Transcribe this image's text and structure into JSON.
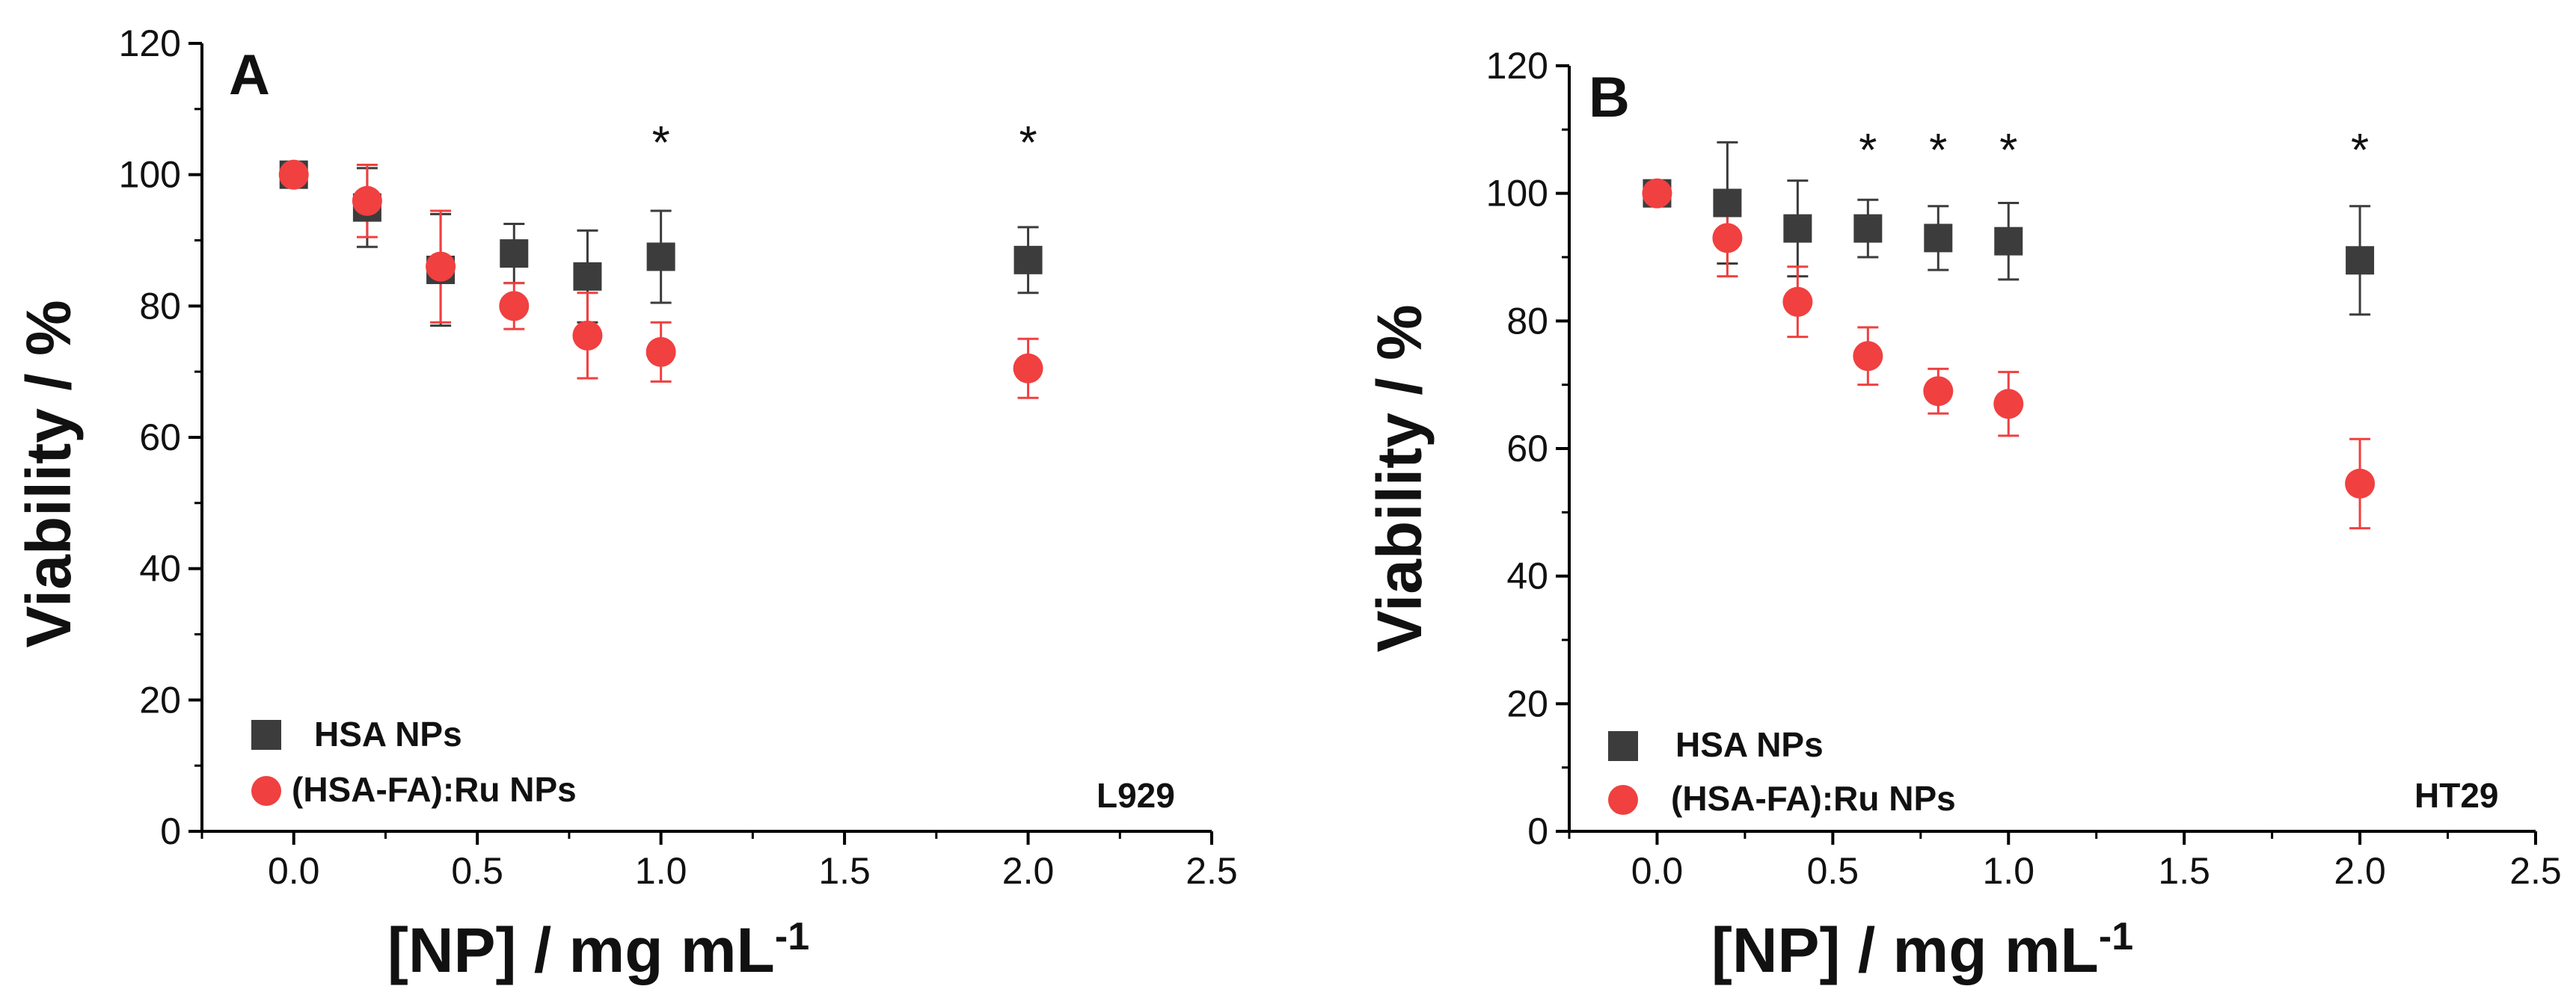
{
  "colors": {
    "hsa": "#3c3c3c",
    "ru": "#f04040",
    "axis": "#000000"
  },
  "chart_data": [
    {
      "type": "scatter",
      "panel": "A",
      "cell_line": "L929",
      "xlabel": "[NP] / mg mL",
      "xlabel_sup": "-1",
      "ylabel": "Viability / %",
      "xlim": [
        -0.25,
        2.5
      ],
      "ylim": [
        0,
        120
      ],
      "xticks": [
        0.0,
        0.5,
        1.0,
        1.5,
        2.0,
        2.5
      ],
      "xtick_labels": [
        "0.0",
        "0.5",
        "1.0",
        "1.5",
        "2.0",
        "2.5"
      ],
      "yticks": [
        0,
        20,
        40,
        60,
        80,
        100,
        120
      ],
      "ytick_labels": [
        "0",
        "20",
        "40",
        "60",
        "80",
        "100",
        "120"
      ],
      "legend_position": "bottom-left",
      "series": [
        {
          "name": "HSA NPs",
          "marker": "square",
          "color": "#3c3c3c",
          "x": [
            0.0,
            0.2,
            0.4,
            0.6,
            0.8,
            1.0,
            2.0
          ],
          "y": [
            100,
            95,
            85.5,
            88,
            84.5,
            87.5,
            87
          ],
          "err": [
            0,
            6,
            8.5,
            4.5,
            7,
            7,
            5
          ]
        },
        {
          "name": "(HSA-FA):Ru NPs",
          "marker": "circle",
          "color": "#f04040",
          "x": [
            0.0,
            0.2,
            0.4,
            0.6,
            0.8,
            1.0,
            2.0
          ],
          "y": [
            100,
            96,
            86,
            80,
            75.5,
            73,
            70.5
          ],
          "err": [
            0,
            5.5,
            8.5,
            3.5,
            6.5,
            4.5,
            4.5
          ]
        }
      ],
      "significance": [
        {
          "x": 1.0,
          "y": 107,
          "label": "*"
        },
        {
          "x": 2.0,
          "y": 107,
          "label": "*"
        }
      ]
    },
    {
      "type": "scatter",
      "panel": "B",
      "cell_line": "HT29",
      "xlabel": "[NP] / mg mL",
      "xlabel_sup": "-1",
      "ylabel": "Viability / %",
      "xlim": [
        -0.25,
        2.5
      ],
      "ylim": [
        0,
        120
      ],
      "xticks": [
        0.0,
        0.5,
        1.0,
        1.5,
        2.0,
        2.5
      ],
      "xtick_labels": [
        "0.0",
        "0.5",
        "1.0",
        "1.5",
        "2.0",
        "2.5"
      ],
      "yticks": [
        0,
        20,
        40,
        60,
        80,
        100,
        120
      ],
      "ytick_labels": [
        "0",
        "20",
        "40",
        "60",
        "80",
        "100",
        "120"
      ],
      "legend_position": "bottom-left",
      "series": [
        {
          "name": "HSA NPs",
          "marker": "square",
          "color": "#3c3c3c",
          "x": [
            0.0,
            0.2,
            0.4,
            0.6,
            0.8,
            1.0,
            2.0
          ],
          "y": [
            100,
            98.5,
            94.5,
            94.5,
            93,
            92.5,
            89.5
          ],
          "err": [
            0,
            9.5,
            7.5,
            4.5,
            5,
            6,
            8.5
          ]
        },
        {
          "name": "(HSA-FA):Ru NPs",
          "marker": "circle",
          "color": "#f04040",
          "x": [
            0.0,
            0.2,
            0.4,
            0.6,
            0.8,
            1.0,
            2.0
          ],
          "y": [
            100,
            93,
            83,
            74.5,
            69,
            67,
            54.5
          ],
          "err": [
            0,
            6,
            5.5,
            4.5,
            3.5,
            5,
            7
          ]
        }
      ],
      "significance": [
        {
          "x": 0.6,
          "y": 109,
          "label": "*"
        },
        {
          "x": 0.8,
          "y": 109,
          "label": "*"
        },
        {
          "x": 1.0,
          "y": 109,
          "label": "*"
        },
        {
          "x": 2.0,
          "y": 109,
          "label": "*"
        }
      ]
    }
  ]
}
